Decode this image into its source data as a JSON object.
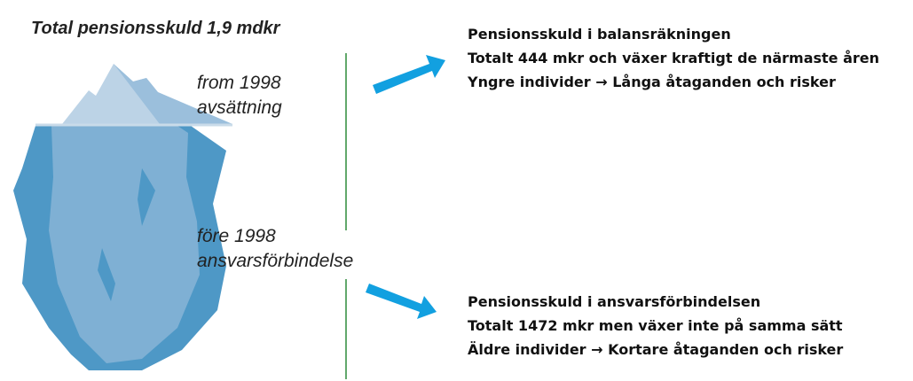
{
  "title": "Total pensionsskuld 1,9 mdkr",
  "labels": {
    "upper": [
      "from 1998",
      "avsättning"
    ],
    "lower": [
      "före 1998",
      "ansvarsförbindelse"
    ]
  },
  "blocks": [
    {
      "lines": [
        "Pensionsskuld i balansräkningen",
        "Totalt 444 mkr och växer kraftigt de närmaste åren",
        "Yngre individer → Långa åtaganden och risker"
      ]
    },
    {
      "lines": [
        "Pensionsskuld i ansvarsförbindelsen",
        "Totalt 1472 mkr men växer inte på samma sätt",
        "Äldre individer → Kortare åtaganden och risker"
      ]
    }
  ]
}
